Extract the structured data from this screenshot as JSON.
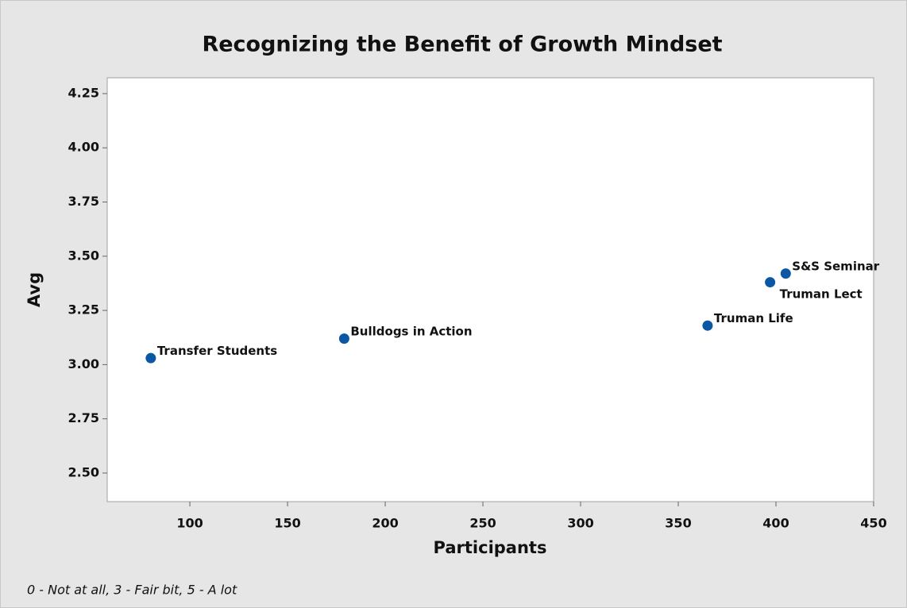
{
  "chart_data": {
    "type": "scatter",
    "title": "Recognizing the Benefit of Growth Mindset",
    "x_label": "Participants",
    "y_label": "Avg",
    "footnote": "0 - Not at all, 3 - Fair bit, 5 - A lot",
    "series": [
      {
        "color": "#0b57a4",
        "labels": [
          "Transfer Students",
          "Bulldogs in Action",
          "Truman Life",
          "Truman Lect",
          "S&S Seminar"
        ],
        "x": [
          80,
          179,
          365,
          397,
          405
        ],
        "values": [
          3.03,
          3.12,
          3.18,
          3.38,
          3.42
        ]
      }
    ],
    "xlim": [
      57.7,
      450
    ],
    "xticks": [
      100,
      150,
      200,
      250,
      300,
      350,
      400,
      450
    ],
    "ylim": [
      2.368,
      4.323
    ],
    "yticks": [
      {
        "value": 2.5,
        "label": "2.50"
      },
      2.75,
      {
        "value": 3,
        "label": "3.00"
      },
      3.25,
      {
        "value": 3.5,
        "label": "3.50"
      },
      3.75,
      {
        "value": 4,
        "label": "4.00"
      },
      4.25
    ]
  }
}
